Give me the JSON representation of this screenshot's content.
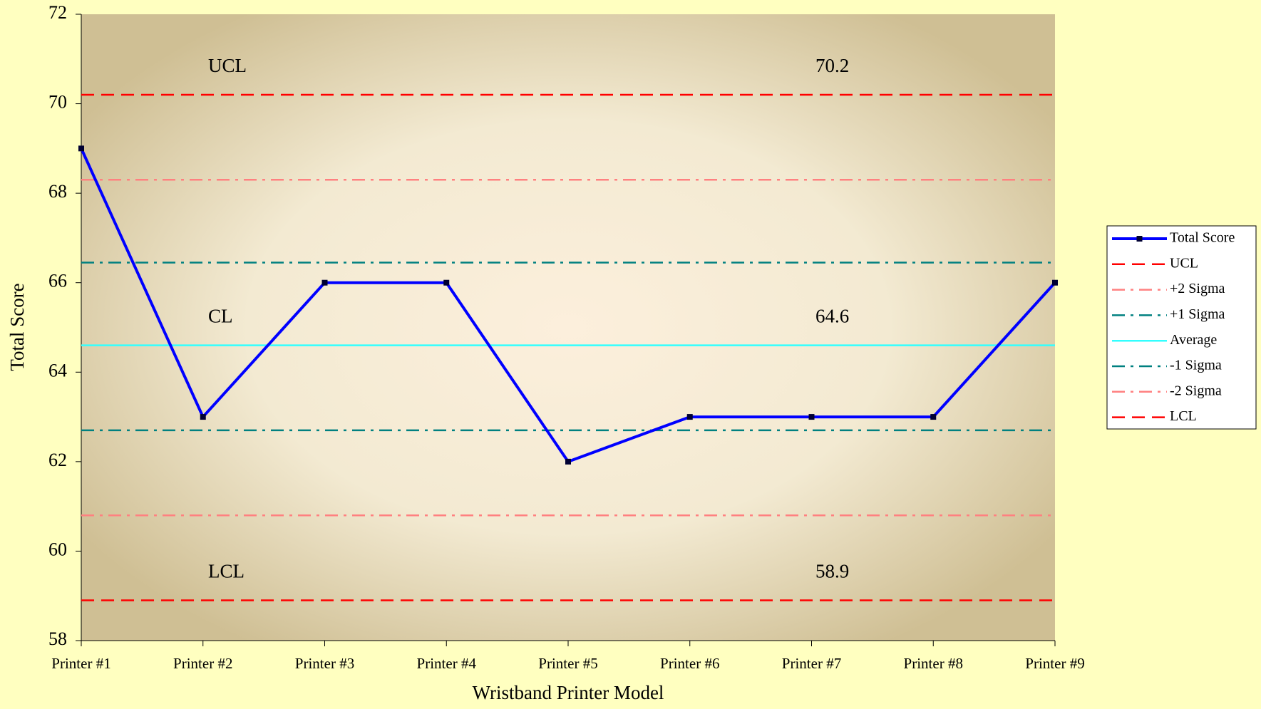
{
  "chart_data": {
    "type": "line",
    "x_label": "Wristband Printer Model",
    "y_label": "Total Score",
    "categories": [
      "Printer #1",
      "Printer #2",
      "Printer #3",
      "Printer #4",
      "Printer #5",
      "Printer #6",
      "Printer #7",
      "Printer #8",
      "Printer #9"
    ],
    "series": [
      {
        "name": "Total Score",
        "color": "#0000ff",
        "values": [
          69,
          63,
          66,
          66,
          62,
          63,
          63,
          63,
          66
        ]
      }
    ],
    "control_lines": [
      {
        "name": "UCL",
        "color": "#ff0000",
        "style": "dash",
        "value": 70.2
      },
      {
        "name": "+2 Sigma",
        "color": "#ff8080",
        "style": "dashdot",
        "value": 68.3
      },
      {
        "name": "+1 Sigma",
        "color": "#008080",
        "style": "dashdot",
        "value": 66.45
      },
      {
        "name": "Average",
        "color": "#33ffff",
        "style": "solid",
        "value": 64.6
      },
      {
        "name": "-1 Sigma",
        "color": "#008080",
        "style": "dashdot",
        "value": 62.7
      },
      {
        "name": "-2 Sigma",
        "color": "#ff8080",
        "style": "dashdot",
        "value": 60.8
      },
      {
        "name": "LCL",
        "color": "#ff0000",
        "style": "dash",
        "value": 58.9
      }
    ],
    "annotations": [
      {
        "label": "UCL",
        "value": 70.2
      },
      {
        "label": "CL",
        "value": 64.6
      },
      {
        "label": "LCL",
        "value": 58.9
      }
    ],
    "ylim": [
      58,
      72
    ],
    "yticks": [
      58,
      60,
      62,
      64,
      66,
      68,
      70,
      72
    ],
    "legend": "right"
  }
}
